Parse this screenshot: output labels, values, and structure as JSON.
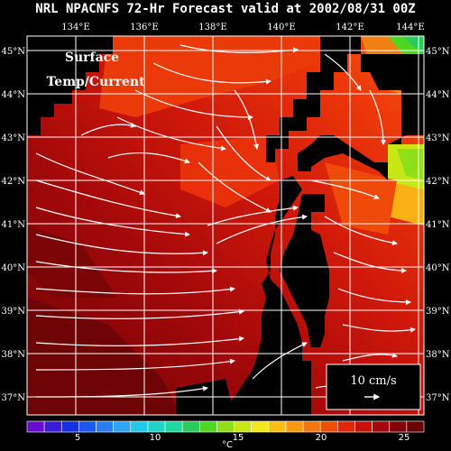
{
  "title": "NRL NPACNFS 72-Hr Forecast valid at 2002/08/31 00Z",
  "inset": {
    "line1": "Surface",
    "line2": "Temp/Current"
  },
  "lon_labels": [
    "134°E",
    "136°E",
    "138°E",
    "140°E",
    "142°E",
    "144°E"
  ],
  "lat_labels": [
    "45°N",
    "44°N",
    "43°N",
    "42°N",
    "41°N",
    "40°N",
    "39°N",
    "38°N",
    "37°N"
  ],
  "scale_box": {
    "label": "10 cm/s"
  },
  "colorbar": {
    "ticks": [
      "5",
      "10",
      "15",
      "20",
      "25"
    ],
    "unit": "°C",
    "colors": [
      "#6a0bd1",
      "#3a1bd8",
      "#1430e6",
      "#1e56f0",
      "#2c7cf2",
      "#2ea5f0",
      "#22c8e6",
      "#20d6c8",
      "#1ed8a0",
      "#2acb5a",
      "#4ed622",
      "#8fe019",
      "#c8e816",
      "#f3e81a",
      "#f8c012",
      "#f79a10",
      "#f4760d",
      "#ef4d0a",
      "#e2240a",
      "#c8100a",
      "#a4080a",
      "#820508",
      "#660305"
    ]
  },
  "legend_colors": {
    "land": "#000000",
    "grid": "#ffffff",
    "vectors": "#ffffff"
  }
}
